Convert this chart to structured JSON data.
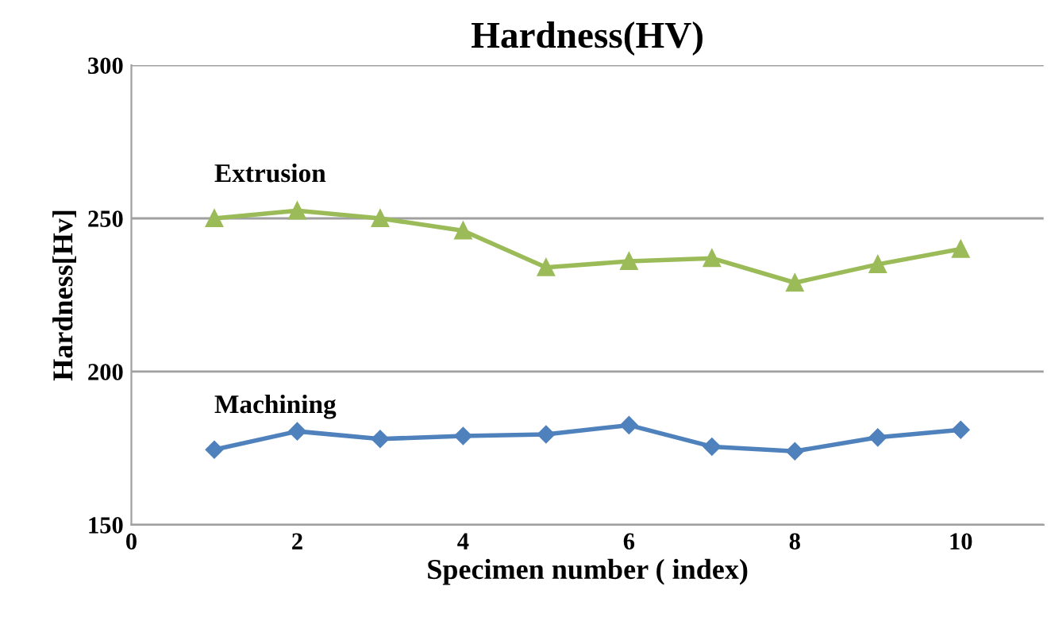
{
  "chart_data": {
    "type": "line",
    "title": "Hardness(HV)",
    "xlabel": "Specimen number ( index)",
    "ylabel": "Hardness[Hv]",
    "x": [
      1,
      2,
      3,
      4,
      5,
      6,
      7,
      8,
      9,
      10
    ],
    "series": [
      {
        "name": "Extrusion",
        "color": "#9bbb59",
        "marker": "triangle",
        "values": [
          250,
          252.5,
          250,
          246,
          234,
          236,
          237,
          229,
          235,
          240
        ]
      },
      {
        "name": "Machining",
        "color": "#4f81bd",
        "marker": "diamond",
        "values": [
          174.5,
          180.5,
          178,
          179,
          179.5,
          182.5,
          175.5,
          174,
          178.5,
          181
        ]
      }
    ],
    "xlim": [
      0,
      11
    ],
    "xticks": [
      0,
      2,
      4,
      6,
      8,
      10
    ],
    "ylim": [
      150,
      300
    ],
    "yticks": [
      150,
      200,
      250,
      300
    ],
    "grid": "y",
    "legend": false,
    "line_style": "solid"
  }
}
